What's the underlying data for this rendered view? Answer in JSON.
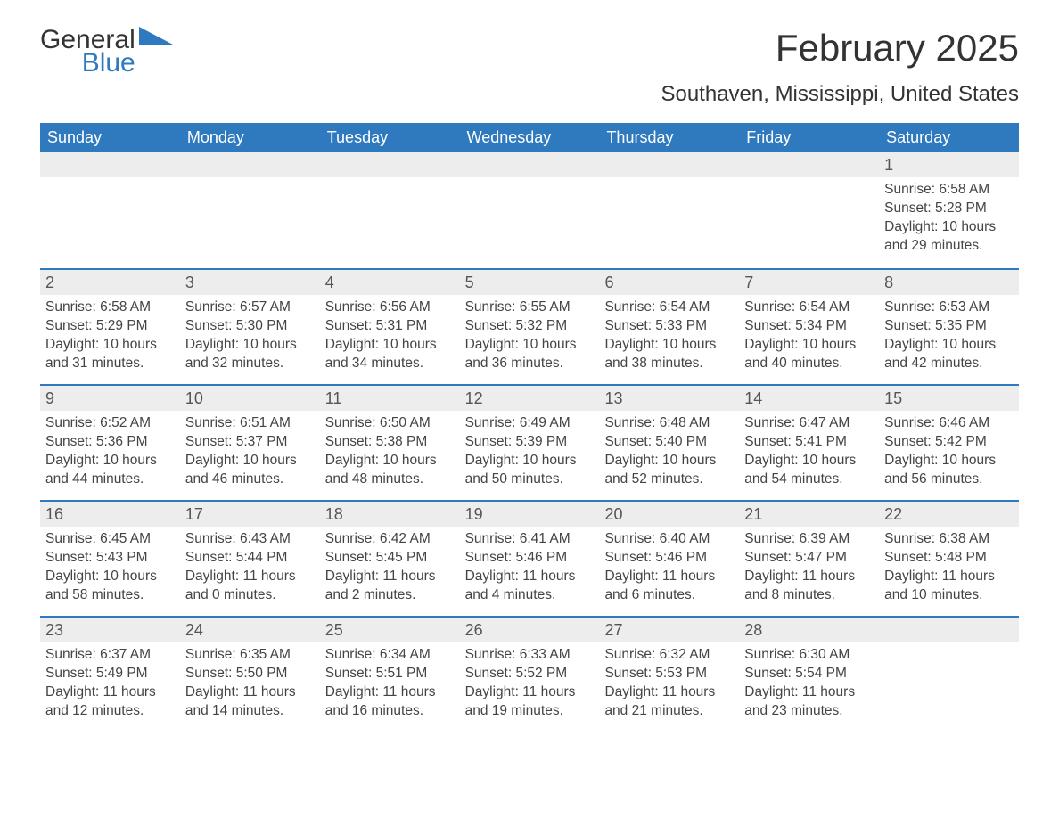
{
  "brand": {
    "word1": "General",
    "word2": "Blue",
    "logo_color": "#2f7abf"
  },
  "title": "February 2025",
  "location": "Southaven, Mississippi, United States",
  "colors": {
    "header_bg": "#2f7abf",
    "header_text": "#ffffff",
    "daynum_bg": "#ededed",
    "body_text": "#444444",
    "rule": "#2f7abf",
    "page_bg": "#ffffff"
  },
  "typography": {
    "title_fontsize": 42,
    "location_fontsize": 24,
    "weekday_fontsize": 18,
    "body_fontsize": 15.5
  },
  "weekdays": [
    "Sunday",
    "Monday",
    "Tuesday",
    "Wednesday",
    "Thursday",
    "Friday",
    "Saturday"
  ],
  "weeks": [
    [
      null,
      null,
      null,
      null,
      null,
      null,
      {
        "n": "1",
        "sr": "Sunrise: 6:58 AM",
        "ss": "Sunset: 5:28 PM",
        "d1": "Daylight: 10 hours",
        "d2": "and 29 minutes."
      }
    ],
    [
      {
        "n": "2",
        "sr": "Sunrise: 6:58 AM",
        "ss": "Sunset: 5:29 PM",
        "d1": "Daylight: 10 hours",
        "d2": "and 31 minutes."
      },
      {
        "n": "3",
        "sr": "Sunrise: 6:57 AM",
        "ss": "Sunset: 5:30 PM",
        "d1": "Daylight: 10 hours",
        "d2": "and 32 minutes."
      },
      {
        "n": "4",
        "sr": "Sunrise: 6:56 AM",
        "ss": "Sunset: 5:31 PM",
        "d1": "Daylight: 10 hours",
        "d2": "and 34 minutes."
      },
      {
        "n": "5",
        "sr": "Sunrise: 6:55 AM",
        "ss": "Sunset: 5:32 PM",
        "d1": "Daylight: 10 hours",
        "d2": "and 36 minutes."
      },
      {
        "n": "6",
        "sr": "Sunrise: 6:54 AM",
        "ss": "Sunset: 5:33 PM",
        "d1": "Daylight: 10 hours",
        "d2": "and 38 minutes."
      },
      {
        "n": "7",
        "sr": "Sunrise: 6:54 AM",
        "ss": "Sunset: 5:34 PM",
        "d1": "Daylight: 10 hours",
        "d2": "and 40 minutes."
      },
      {
        "n": "8",
        "sr": "Sunrise: 6:53 AM",
        "ss": "Sunset: 5:35 PM",
        "d1": "Daylight: 10 hours",
        "d2": "and 42 minutes."
      }
    ],
    [
      {
        "n": "9",
        "sr": "Sunrise: 6:52 AM",
        "ss": "Sunset: 5:36 PM",
        "d1": "Daylight: 10 hours",
        "d2": "and 44 minutes."
      },
      {
        "n": "10",
        "sr": "Sunrise: 6:51 AM",
        "ss": "Sunset: 5:37 PM",
        "d1": "Daylight: 10 hours",
        "d2": "and 46 minutes."
      },
      {
        "n": "11",
        "sr": "Sunrise: 6:50 AM",
        "ss": "Sunset: 5:38 PM",
        "d1": "Daylight: 10 hours",
        "d2": "and 48 minutes."
      },
      {
        "n": "12",
        "sr": "Sunrise: 6:49 AM",
        "ss": "Sunset: 5:39 PM",
        "d1": "Daylight: 10 hours",
        "d2": "and 50 minutes."
      },
      {
        "n": "13",
        "sr": "Sunrise: 6:48 AM",
        "ss": "Sunset: 5:40 PM",
        "d1": "Daylight: 10 hours",
        "d2": "and 52 minutes."
      },
      {
        "n": "14",
        "sr": "Sunrise: 6:47 AM",
        "ss": "Sunset: 5:41 PM",
        "d1": "Daylight: 10 hours",
        "d2": "and 54 minutes."
      },
      {
        "n": "15",
        "sr": "Sunrise: 6:46 AM",
        "ss": "Sunset: 5:42 PM",
        "d1": "Daylight: 10 hours",
        "d2": "and 56 minutes."
      }
    ],
    [
      {
        "n": "16",
        "sr": "Sunrise: 6:45 AM",
        "ss": "Sunset: 5:43 PM",
        "d1": "Daylight: 10 hours",
        "d2": "and 58 minutes."
      },
      {
        "n": "17",
        "sr": "Sunrise: 6:43 AM",
        "ss": "Sunset: 5:44 PM",
        "d1": "Daylight: 11 hours",
        "d2": "and 0 minutes."
      },
      {
        "n": "18",
        "sr": "Sunrise: 6:42 AM",
        "ss": "Sunset: 5:45 PM",
        "d1": "Daylight: 11 hours",
        "d2": "and 2 minutes."
      },
      {
        "n": "19",
        "sr": "Sunrise: 6:41 AM",
        "ss": "Sunset: 5:46 PM",
        "d1": "Daylight: 11 hours",
        "d2": "and 4 minutes."
      },
      {
        "n": "20",
        "sr": "Sunrise: 6:40 AM",
        "ss": "Sunset: 5:46 PM",
        "d1": "Daylight: 11 hours",
        "d2": "and 6 minutes."
      },
      {
        "n": "21",
        "sr": "Sunrise: 6:39 AM",
        "ss": "Sunset: 5:47 PM",
        "d1": "Daylight: 11 hours",
        "d2": "and 8 minutes."
      },
      {
        "n": "22",
        "sr": "Sunrise: 6:38 AM",
        "ss": "Sunset: 5:48 PM",
        "d1": "Daylight: 11 hours",
        "d2": "and 10 minutes."
      }
    ],
    [
      {
        "n": "23",
        "sr": "Sunrise: 6:37 AM",
        "ss": "Sunset: 5:49 PM",
        "d1": "Daylight: 11 hours",
        "d2": "and 12 minutes."
      },
      {
        "n": "24",
        "sr": "Sunrise: 6:35 AM",
        "ss": "Sunset: 5:50 PM",
        "d1": "Daylight: 11 hours",
        "d2": "and 14 minutes."
      },
      {
        "n": "25",
        "sr": "Sunrise: 6:34 AM",
        "ss": "Sunset: 5:51 PM",
        "d1": "Daylight: 11 hours",
        "d2": "and 16 minutes."
      },
      {
        "n": "26",
        "sr": "Sunrise: 6:33 AM",
        "ss": "Sunset: 5:52 PM",
        "d1": "Daylight: 11 hours",
        "d2": "and 19 minutes."
      },
      {
        "n": "27",
        "sr": "Sunrise: 6:32 AM",
        "ss": "Sunset: 5:53 PM",
        "d1": "Daylight: 11 hours",
        "d2": "and 21 minutes."
      },
      {
        "n": "28",
        "sr": "Sunrise: 6:30 AM",
        "ss": "Sunset: 5:54 PM",
        "d1": "Daylight: 11 hours",
        "d2": "and 23 minutes."
      },
      null
    ]
  ]
}
